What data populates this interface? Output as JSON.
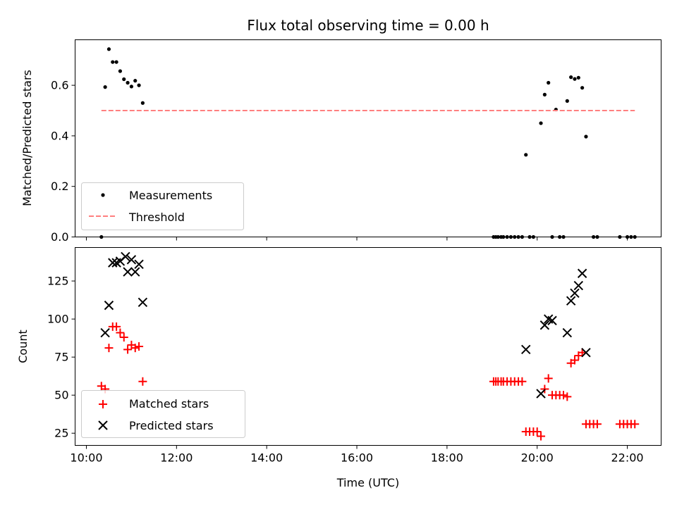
{
  "chart_data": {
    "title": "Flux total observing time = 0.00 h",
    "xlabel": "Time (UTC)",
    "x_unit": "hours UTC",
    "xlim": [
      "09:45",
      "22:45"
    ],
    "xticks": [
      "10:00",
      "12:00",
      "14:00",
      "16:00",
      "18:00",
      "20:00",
      "22:00"
    ],
    "panels": [
      {
        "type": "scatter",
        "ylabel": "Matched/Predicted stars",
        "ylim": [
          0,
          0.78
        ],
        "yticks": [
          "0.0",
          "0.2",
          "0.4",
          "0.6"
        ],
        "legend_position": "lower-left",
        "grid": false,
        "series": [
          {
            "name": "Measurements",
            "marker": "dot",
            "color": "#000000",
            "points": [
              [
                "10:20",
                0.0
              ],
              [
                "10:25",
                0.593
              ],
              [
                "10:30",
                0.743
              ],
              [
                "10:35",
                0.692
              ],
              [
                "10:40",
                0.692
              ],
              [
                "10:45",
                0.656
              ],
              [
                "10:50",
                0.624
              ],
              [
                "10:55",
                0.61
              ],
              [
                "11:00",
                0.595
              ],
              [
                "11:05",
                0.618
              ],
              [
                "11:10",
                0.6
              ],
              [
                "11:15",
                0.53
              ],
              [
                "19:02",
                0.0
              ],
              [
                "19:05",
                0.0
              ],
              [
                "19:08",
                0.0
              ],
              [
                "19:12",
                0.0
              ],
              [
                "19:15",
                0.0
              ],
              [
                "19:20",
                0.0
              ],
              [
                "19:25",
                0.0
              ],
              [
                "19:30",
                0.0
              ],
              [
                "19:35",
                0.0
              ],
              [
                "19:40",
                0.0
              ],
              [
                "19:45",
                0.325
              ],
              [
                "19:50",
                0.0
              ],
              [
                "19:55",
                0.0
              ],
              [
                "20:05",
                0.45
              ],
              [
                "20:10",
                0.563
              ],
              [
                "20:15",
                0.61
              ],
              [
                "20:20",
                0.0
              ],
              [
                "20:25",
                0.504
              ],
              [
                "20:30",
                0.0
              ],
              [
                "20:35",
                0.0
              ],
              [
                "20:40",
                0.538
              ],
              [
                "20:45",
                0.632
              ],
              [
                "20:50",
                0.625
              ],
              [
                "20:55",
                0.63
              ],
              [
                "21:00",
                0.59
              ],
              [
                "21:05",
                0.397
              ],
              [
                "21:15",
                0.0
              ],
              [
                "21:20",
                0.0
              ],
              [
                "21:50",
                0.0
              ],
              [
                "22:00",
                0.0
              ],
              [
                "22:05",
                0.0
              ],
              [
                "22:10",
                0.0
              ]
            ]
          },
          {
            "name": "Threshold",
            "marker": "dashed-line",
            "color": "#ff7f7f",
            "points": [
              [
                "10:20",
                0.5
              ],
              [
                "22:10",
                0.5
              ]
            ]
          }
        ]
      },
      {
        "type": "scatter",
        "ylabel": "Count",
        "ylim": [
          17,
          147
        ],
        "yticks": [
          "25",
          "50",
          "75",
          "100",
          "125"
        ],
        "legend_position": "lower-left",
        "grid": false,
        "series": [
          {
            "name": "Matched stars",
            "marker": "plus",
            "color": "#ff0000",
            "points": [
              [
                "10:20",
                56
              ],
              [
                "10:25",
                54
              ],
              [
                "10:30",
                81
              ],
              [
                "10:35",
                95
              ],
              [
                "10:40",
                95
              ],
              [
                "10:45",
                91
              ],
              [
                "10:50",
                88
              ],
              [
                "10:55",
                80
              ],
              [
                "11:00",
                83
              ],
              [
                "11:05",
                81
              ],
              [
                "11:10",
                82
              ],
              [
                "11:15",
                59
              ],
              [
                "19:02",
                59
              ],
              [
                "19:05",
                59
              ],
              [
                "19:08",
                59
              ],
              [
                "19:12",
                59
              ],
              [
                "19:15",
                59
              ],
              [
                "19:20",
                59
              ],
              [
                "19:25",
                59
              ],
              [
                "19:30",
                59
              ],
              [
                "19:35",
                59
              ],
              [
                "19:40",
                59
              ],
              [
                "19:45",
                26
              ],
              [
                "19:50",
                26
              ],
              [
                "19:55",
                26
              ],
              [
                "20:00",
                26
              ],
              [
                "20:05",
                23
              ],
              [
                "20:10",
                54
              ],
              [
                "20:15",
                61
              ],
              [
                "20:20",
                50
              ],
              [
                "20:25",
                50
              ],
              [
                "20:30",
                50
              ],
              [
                "20:35",
                50
              ],
              [
                "20:40",
                49
              ],
              [
                "20:45",
                71
              ],
              [
                "20:50",
                73
              ],
              [
                "20:55",
                76
              ],
              [
                "21:00",
                78
              ],
              [
                "21:05",
                31
              ],
              [
                "21:10",
                31
              ],
              [
                "21:15",
                31
              ],
              [
                "21:20",
                31
              ],
              [
                "21:50",
                31
              ],
              [
                "21:55",
                31
              ],
              [
                "22:00",
                31
              ],
              [
                "22:05",
                31
              ],
              [
                "22:10",
                31
              ]
            ]
          },
          {
            "name": "Predicted stars",
            "marker": "x",
            "color": "#000000",
            "points": [
              [
                "10:25",
                91
              ],
              [
                "10:30",
                109
              ],
              [
                "10:35",
                137
              ],
              [
                "10:40",
                137
              ],
              [
                "10:45",
                138
              ],
              [
                "10:52",
                141
              ],
              [
                "10:55",
                131
              ],
              [
                "11:00",
                139
              ],
              [
                "11:05",
                131
              ],
              [
                "11:10",
                136
              ],
              [
                "11:15",
                111
              ],
              [
                "19:45",
                80
              ],
              [
                "20:05",
                51
              ],
              [
                "20:10",
                96
              ],
              [
                "20:15",
                100
              ],
              [
                "20:20",
                99
              ],
              [
                "20:40",
                91
              ],
              [
                "20:45",
                112
              ],
              [
                "20:50",
                117
              ],
              [
                "20:55",
                122
              ],
              [
                "21:00",
                130
              ],
              [
                "21:05",
                78
              ]
            ]
          }
        ]
      }
    ]
  }
}
